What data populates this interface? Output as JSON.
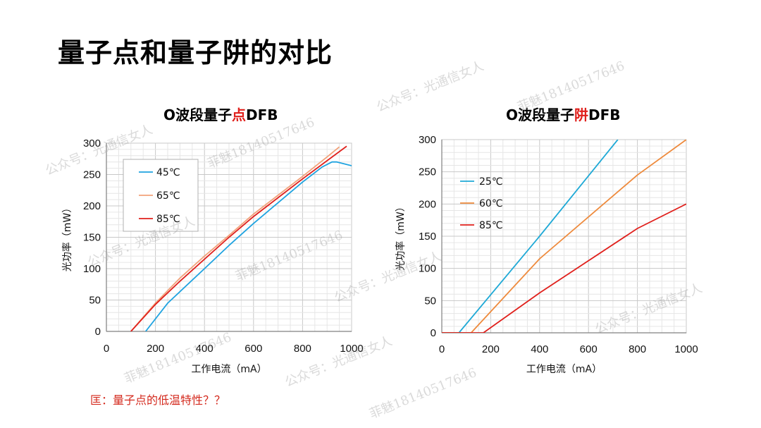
{
  "slide": {
    "title": "量子点和量子阱的对比",
    "footnote": "匡：量子点的低温特性？？"
  },
  "watermarks": [
    "公众号：光通信女人",
    "菲魅18140517646",
    "公众号：光通信女人",
    "菲魅18140517646",
    "公众号：光通信女人",
    "菲魅18140517646",
    "公众号：光通信女人",
    "菲魅18140517646",
    "公众号：光通信女人",
    "菲魅18140517646",
    "公众号：光通信女人"
  ],
  "colors": {
    "title_highlight": "#e0201c",
    "footnote": "#d42a1e",
    "grid": "#d9d9d9"
  },
  "chart_data": [
    {
      "type": "line",
      "title_parts": [
        "O波段量子",
        "点",
        "DFB"
      ],
      "xlabel": "工作电流（mA）",
      "ylabel": "光功率（mW）",
      "xlim": [
        0,
        1000
      ],
      "ylim": [
        0,
        300
      ],
      "xticks": [
        0,
        200,
        400,
        600,
        800,
        1000
      ],
      "yticks": [
        0,
        50,
        100,
        150,
        200,
        250,
        300
      ],
      "grid": true,
      "legend_position": "top-left",
      "series": [
        {
          "name": "45℃",
          "color": "#1fa3e0",
          "x": [
            160,
            250,
            400,
            500,
            600,
            700,
            800,
            880,
            920,
            940,
            1000
          ],
          "y": [
            0,
            45,
            100,
            137,
            172,
            205,
            238,
            262,
            270,
            270,
            264
          ]
        },
        {
          "name": "65℃",
          "color": "#f2a27a",
          "x": [
            100,
            200,
            300,
            400,
            500,
            600,
            700,
            800,
            900,
            950
          ],
          "y": [
            0,
            45,
            85,
            120,
            153,
            187,
            217,
            247,
            278,
            294
          ]
        },
        {
          "name": "85℃",
          "color": "#e0201c",
          "x": [
            100,
            200,
            300,
            400,
            500,
            600,
            700,
            800,
            900,
            980
          ],
          "y": [
            0,
            43,
            80,
            115,
            150,
            183,
            213,
            243,
            272,
            295
          ]
        }
      ]
    },
    {
      "type": "line",
      "title_parts": [
        "O波段量子",
        "阱",
        "DFB"
      ],
      "xlabel": "工作电流（mA）",
      "ylabel": "光功率（mW）",
      "xlim": [
        0,
        1000
      ],
      "ylim": [
        0,
        300
      ],
      "xticks": [
        0,
        200,
        400,
        600,
        800,
        1000
      ],
      "yticks": [
        0,
        50,
        100,
        150,
        200,
        250,
        300
      ],
      "grid": true,
      "legend_position": "top-left",
      "series": [
        {
          "name": "25℃",
          "color": "#1fa9d6",
          "x": [
            0,
            70,
            400,
            720
          ],
          "y": [
            0,
            0,
            150,
            300
          ]
        },
        {
          "name": "60℃",
          "color": "#ee8a3c",
          "x": [
            0,
            120,
            400,
            800,
            1000
          ],
          "y": [
            0,
            0,
            115,
            245,
            300
          ]
        },
        {
          "name": "85℃",
          "color": "#e0201c",
          "x": [
            0,
            170,
            400,
            800,
            1000
          ],
          "y": [
            0,
            0,
            62,
            162,
            200
          ]
        }
      ]
    }
  ]
}
